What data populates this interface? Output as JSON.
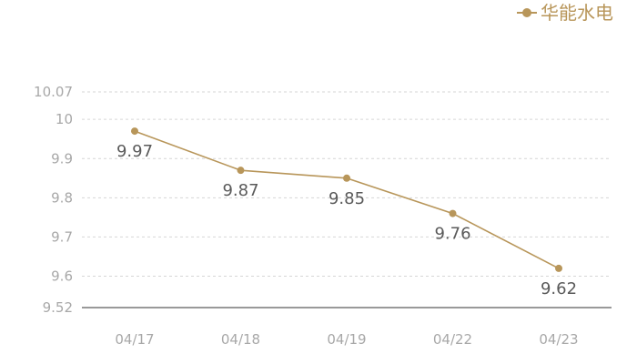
{
  "chart_data": {
    "type": "line",
    "categories": [
      "04/17",
      "04/18",
      "04/19",
      "04/22",
      "04/23"
    ],
    "series": [
      {
        "name": "华能水电",
        "values": [
          9.97,
          9.87,
          9.85,
          9.76,
          9.62
        ],
        "color": "#b8965a"
      }
    ],
    "y_ticks": [
      "9.52",
      "9.6",
      "9.7",
      "9.8",
      "9.9",
      "10",
      "10.07"
    ],
    "ylim": [
      9.52,
      10.07
    ],
    "grid": true,
    "legend": "top-right",
    "data_labels": true
  }
}
